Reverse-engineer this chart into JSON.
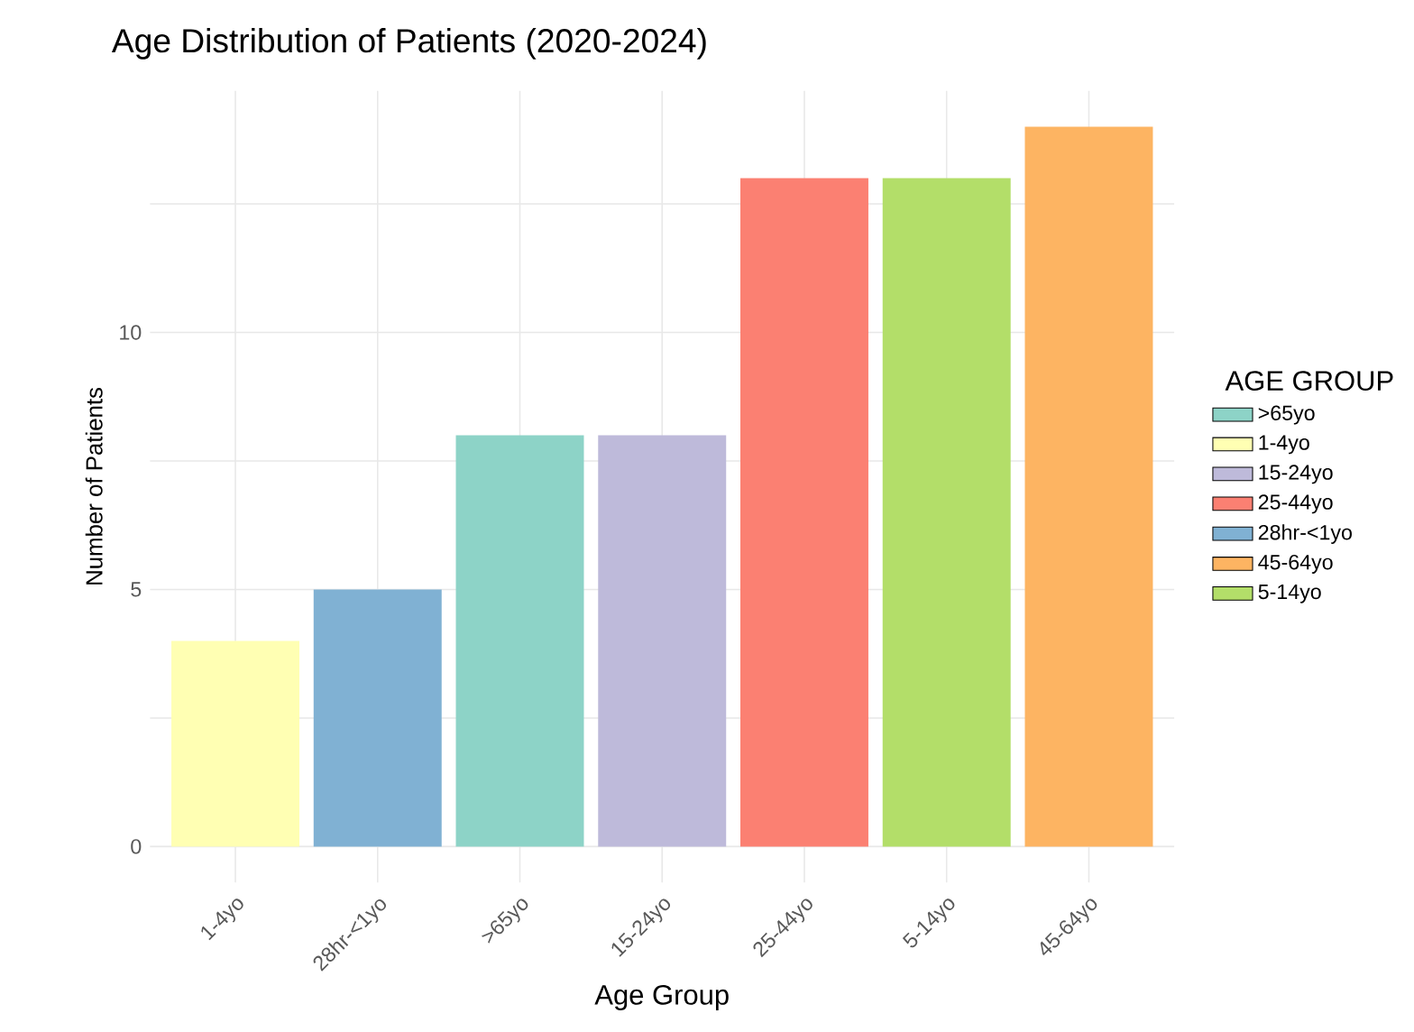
{
  "chart_data": {
    "type": "bar",
    "title": "Age Distribution of Patients (2020-2024)",
    "xlabel": "Age Group",
    "ylabel": "Number of Patients",
    "legend_title": "AGE GROUP",
    "categories": [
      "1-4yo",
      "28hr-<1yo",
      ">65yo",
      "15-24yo",
      "25-44yo",
      "5-14yo",
      "45-64yo"
    ],
    "series": [
      {
        "name": ">65yo",
        "color": "#8dd3c7",
        "values": [
          null,
          null,
          8,
          null,
          null,
          null,
          null
        ]
      },
      {
        "name": "1-4yo",
        "color": "#ffffb3",
        "values": [
          4,
          null,
          null,
          null,
          null,
          null,
          null
        ]
      },
      {
        "name": "15-24yo",
        "color": "#bebada",
        "values": [
          null,
          null,
          null,
          8,
          null,
          null,
          null
        ]
      },
      {
        "name": "25-44yo",
        "color": "#fb8072",
        "values": [
          null,
          null,
          null,
          null,
          13,
          null,
          null
        ]
      },
      {
        "name": "28hr-<1yo",
        "color": "#80b1d3",
        "values": [
          null,
          5,
          null,
          null,
          null,
          null,
          null
        ]
      },
      {
        "name": "45-64yo",
        "color": "#fdb462",
        "values": [
          null,
          null,
          null,
          null,
          null,
          null,
          14
        ]
      },
      {
        "name": "5-14yo",
        "color": "#b3de69",
        "values": [
          null,
          null,
          null,
          null,
          null,
          13,
          null
        ]
      }
    ],
    "ylim": [
      -0.7,
      14.7
    ],
    "yticks": [
      0,
      {
        "value": 2.5,
        "label": null
      },
      5,
      {
        "value": 7.5,
        "label": null
      },
      10,
      {
        "value": 12.5,
        "label": null
      }
    ],
    "grid": true,
    "legend": "right"
  }
}
